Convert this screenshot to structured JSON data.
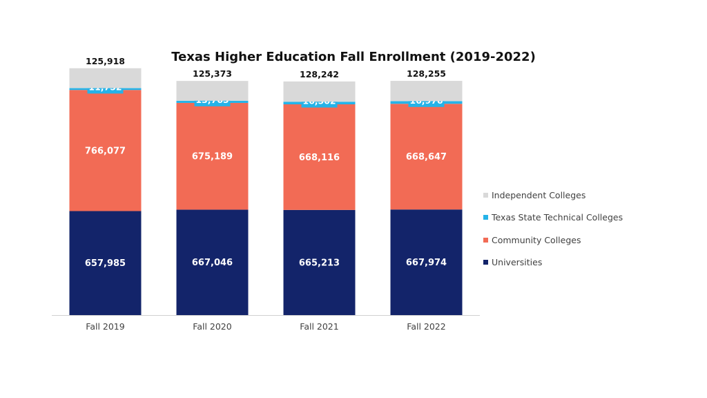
{
  "chart_data": {
    "type": "bar",
    "stacked": true,
    "title": "Texas Higher Education Fall Enrollment (2019-2022)",
    "xlabel": "",
    "ylabel": "",
    "categories": [
      "Fall 2019",
      "Fall 2020",
      "Fall 2021",
      "Fall 2022"
    ],
    "series": [
      {
        "name": "Universities",
        "color": "#13246a",
        "values": [
          657985,
          667046,
          665213,
          667974
        ],
        "labels": [
          "657,985",
          "667,046",
          "665,213",
          "667,974"
        ]
      },
      {
        "name": "Community Colleges",
        "color": "#f26b55",
        "values": [
          766077,
          675189,
          668116,
          668647
        ],
        "labels": [
          "766,077",
          "675,189",
          "668,116",
          "668,647"
        ]
      },
      {
        "name": "Texas State Technical Colleges",
        "color": "#25b3e8",
        "values": [
          11752,
          13765,
          16502,
          16976
        ],
        "labels": [
          "11,752",
          "13,765",
          "16,502",
          "16,976"
        ]
      },
      {
        "name": "Independent Colleges",
        "color": "#d9d9d9",
        "values": [
          125918,
          125373,
          128242,
          128255
        ],
        "labels": [
          "125,918",
          "125,373",
          "128,242",
          "128,255"
        ]
      }
    ],
    "legend_order": [
      "Independent Colleges",
      "Texas State Technical Colleges",
      "Community Colleges",
      "Universities"
    ],
    "legend_position": "right",
    "grid": false,
    "ylim": [
      0,
      1600000
    ]
  }
}
